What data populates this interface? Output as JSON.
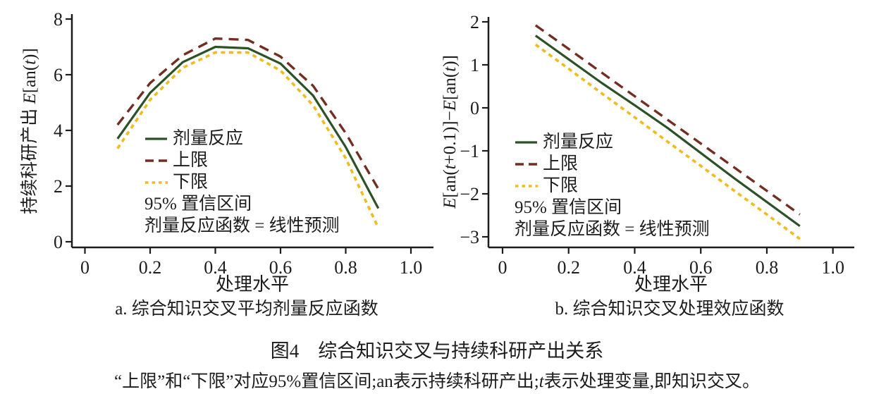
{
  "figure_caption": "图4　综合知识交叉与持续科研产出关系",
  "footnote": {
    "part1": "“上限”和“下限”对应95%置信区间;an表示持续科研产出;",
    "italic_t": "t",
    "part2": "表示处理变量,即知识交叉。"
  },
  "colors": {
    "dose_response": "#2b5226",
    "upper_bound": "#742e21",
    "lower_bound": "#f0bb1c",
    "axis": "#1c1c1c"
  },
  "chart_data": [
    {
      "type": "line",
      "panel_label": "a. 综合知识交叉平均剂量反应函数",
      "xlabel": "处理水平",
      "ylabel": "持续科研产出 E[an(t)]",
      "ylabel_parts": {
        "pre": "持续科研产出 ",
        "e": "E",
        "mid": "[an(",
        "t": "t",
        "post": ")]"
      },
      "x": [
        0.1,
        0.2,
        0.3,
        0.4,
        0.5,
        0.6,
        0.7,
        0.8,
        0.9
      ],
      "series": [
        {
          "name": "剂量反应",
          "style": "solid",
          "color": "#2b5226",
          "values": [
            3.7,
            5.35,
            6.45,
            7.0,
            6.95,
            6.4,
            5.25,
            3.4,
            1.2
          ]
        },
        {
          "name": "上限",
          "style": "dashed",
          "color": "#742e21",
          "values": [
            4.2,
            5.7,
            6.7,
            7.3,
            7.25,
            6.65,
            5.6,
            3.9,
            1.9
          ]
        },
        {
          "name": "下限",
          "style": "dotted",
          "color": "#f0bb1c",
          "values": [
            3.35,
            5.1,
            6.25,
            6.8,
            6.8,
            6.15,
            4.9,
            3.0,
            0.5
          ]
        }
      ],
      "annotations": [
        "95% 置信区间",
        "剂量反应函数 = 线性预测"
      ],
      "xticks": [
        0,
        0.2,
        0.4,
        0.6,
        0.8,
        1.0
      ],
      "xtick_labels": [
        "0",
        "0.2",
        "0.4",
        "0.6",
        "0.8",
        "1.0"
      ],
      "yticks": [
        0,
        2,
        4,
        6,
        8
      ],
      "ytick_labels": [
        "0",
        "2",
        "4",
        "6",
        "8"
      ],
      "xlim": [
        0,
        1.07
      ],
      "ylim": [
        0,
        8.4
      ],
      "grid": false,
      "legend_position": "inside-left"
    },
    {
      "type": "line",
      "panel_label": "b. 综合知识交叉处理效应函数",
      "xlabel": "处理水平",
      "ylabel": "E[an(t+0.1)]−E[an(t)]",
      "ylabel_parts": {
        "e1": "E",
        "p1": "[an(",
        "t1": "t",
        "p2": "+0.1)]−",
        "e2": "E",
        "p3": "[an(",
        "t2": "t",
        "p4": ")]"
      },
      "x": [
        0.1,
        0.2,
        0.3,
        0.4,
        0.5,
        0.6,
        0.7,
        0.8,
        0.9
      ],
      "series": [
        {
          "name": "剂量反应",
          "style": "solid",
          "color": "#2b5226",
          "values": [
            1.68,
            1.13,
            0.58,
            0.06,
            -0.47,
            -1.05,
            -1.63,
            -2.19,
            -2.75
          ]
        },
        {
          "name": "上限",
          "style": "dashed",
          "color": "#742e21",
          "values": [
            1.92,
            1.37,
            0.82,
            0.27,
            -0.28,
            -0.83,
            -1.38,
            -1.93,
            -2.48
          ]
        },
        {
          "name": "下限",
          "style": "dotted",
          "color": "#f0bb1c",
          "values": [
            1.47,
            0.91,
            0.34,
            -0.22,
            -0.79,
            -1.35,
            -1.92,
            -2.48,
            -3.05
          ]
        }
      ],
      "annotations": [
        "95% 置信区间",
        "剂量反应函数 = 线性预测"
      ],
      "xticks": [
        0,
        0.2,
        0.4,
        0.6,
        0.8,
        1.0
      ],
      "xtick_labels": [
        "0",
        "0.2",
        "0.4",
        "0.6",
        "0.8",
        "1.0"
      ],
      "yticks": [
        -3,
        -2,
        -1,
        0,
        1,
        2
      ],
      "ytick_labels": [
        "−3",
        "−2",
        "−1",
        "0",
        "1",
        "2"
      ],
      "xlim": [
        0,
        1.07
      ],
      "ylim": [
        -3.3,
        2.1
      ],
      "grid": false,
      "legend_position": "inside-left"
    }
  ]
}
